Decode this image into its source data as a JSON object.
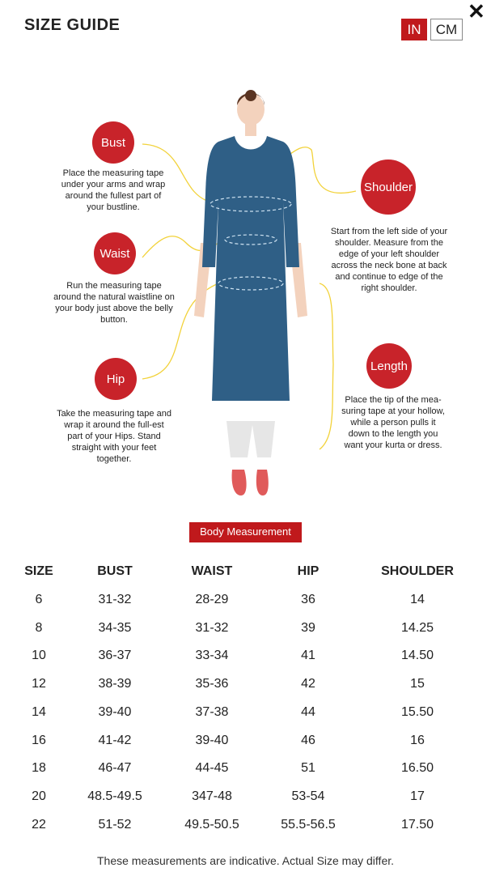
{
  "header": {
    "title": "SIZE GUIDE",
    "close_icon": "close-icon",
    "units": [
      "IN",
      "CM"
    ],
    "active_unit": "IN"
  },
  "colors": {
    "accent": "#c0191c",
    "kurta": "#2f5f86",
    "guide_line": "#f2d23a"
  },
  "guide": {
    "bust": {
      "label": "Bust",
      "text": "Place the measuring tape under your arms and wrap around the fullest part of your bustline."
    },
    "waist": {
      "label": "Waist",
      "text": "Run the measuring tape around the natural waistline on your body just above the belly button."
    },
    "hip": {
      "label": "Hip",
      "text": "Take the measuring tape and wrap it around the full-est part of your Hips. Stand straight with your feet together."
    },
    "shoulder": {
      "label": "Shoulder",
      "text": "Start from the left side of your shoulder. Measure from the edge of your left shoulder across the neck bone at back and continue to edge of the right shoulder."
    },
    "length": {
      "label": "Length",
      "text": "Place the tip of the mea-suring tape at your hollow, while a person pulls it down to the length you want your kurta or dress."
    }
  },
  "section_label": "Body Measurement",
  "table": {
    "headers": [
      "SIZE",
      "BUST",
      "WAIST",
      "HIP",
      "SHOULDER"
    ],
    "rows": [
      [
        "6",
        "31-32",
        "28-29",
        "36",
        "14"
      ],
      [
        "8",
        "34-35",
        "31-32",
        "39",
        "14.25"
      ],
      [
        "10",
        "36-37",
        "33-34",
        "41",
        "14.50"
      ],
      [
        "12",
        "38-39",
        "35-36",
        "42",
        "15"
      ],
      [
        "14",
        "39-40",
        "37-38",
        "44",
        "15.50"
      ],
      [
        "16",
        "41-42",
        "39-40",
        "46",
        "16"
      ],
      [
        "18",
        "46-47",
        "44-45",
        "51",
        "16.50"
      ],
      [
        "20",
        "48.5-49.5",
        "347-48",
        "53-54",
        "17"
      ],
      [
        "22",
        "51-52",
        "49.5-50.5",
        "55.5-56.5",
        "17.50"
      ]
    ]
  },
  "footer": "These measurements are indicative. Actual Size may differ."
}
